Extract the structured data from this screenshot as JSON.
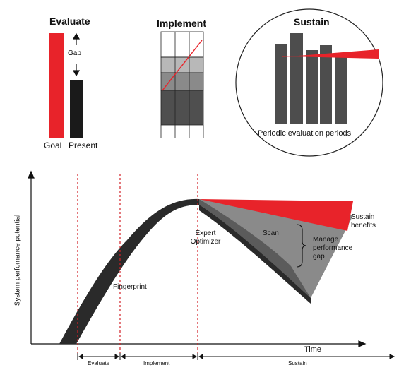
{
  "evaluate_panel": {
    "title": "Evaluate",
    "gap_label": "Gap",
    "goal_label": "Goal",
    "present_label": "Present",
    "goal_color": "#e8232a",
    "present_color": "#1a1a1a"
  },
  "implement_panel": {
    "title": "Implement"
  },
  "sustain_panel": {
    "title": "Sustain",
    "caption": "Periodic evaluation periods"
  },
  "main_chart": {
    "y_label": "System perfomance potential",
    "x_label": "Time",
    "annotations": {
      "expert_optimizer": "Expert Optimizer",
      "fingerprint": "Fingerprint",
      "scan": "Scan",
      "manage_gap": "Manage performance gap",
      "sustain_benefits": "Sustain benefits"
    },
    "phases": [
      "Evaluate",
      "Implement",
      "Sustain"
    ],
    "colors": {
      "curve_dark": "#2a2a2a",
      "curve_mid": "#5b5b5b",
      "curve_light": "#8a8a8a",
      "sustain_red": "#e8232a",
      "phase_line": "#d21f26"
    }
  }
}
